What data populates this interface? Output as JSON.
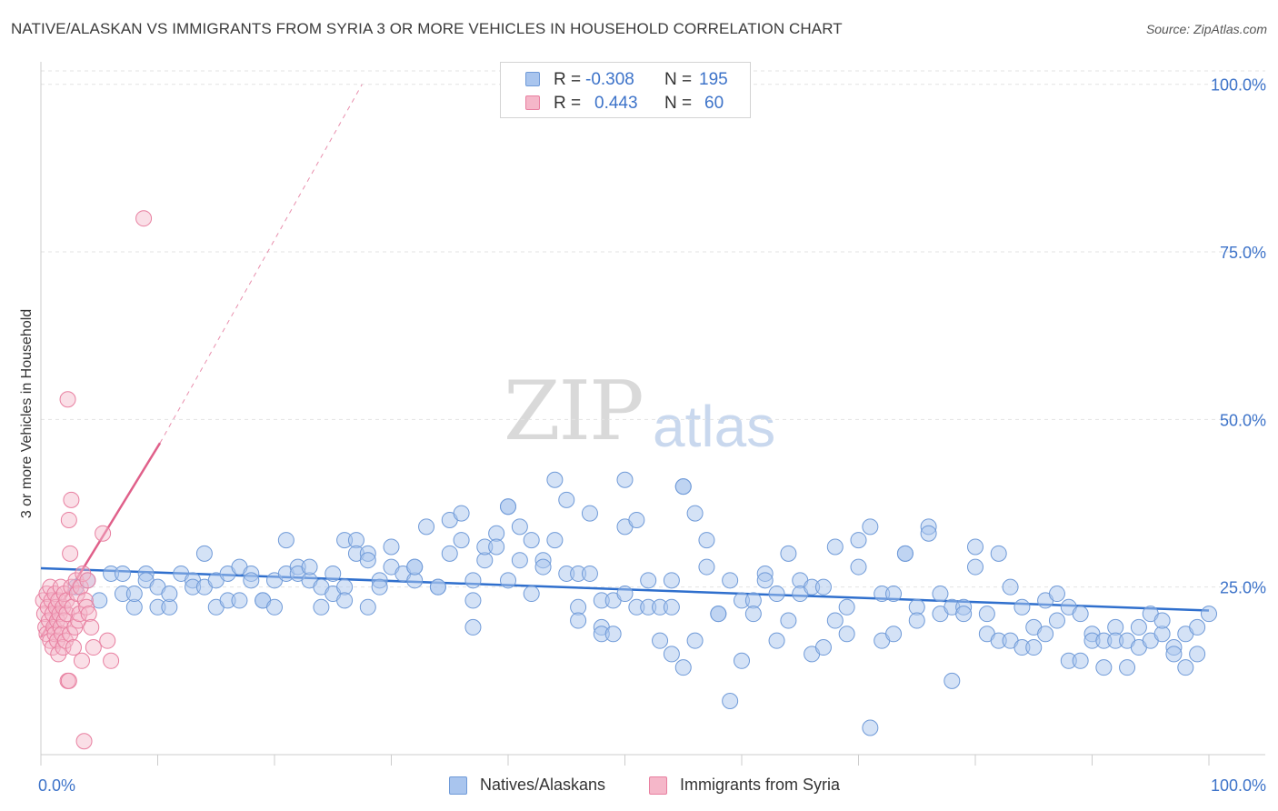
{
  "header": {
    "title": "NATIVE/ALASKAN VS IMMIGRANTS FROM SYRIA 3 OR MORE VEHICLES IN HOUSEHOLD CORRELATION CHART",
    "source": "Source: ZipAtlas.com"
  },
  "watermark": {
    "zip": "ZIP",
    "atlas": "atlas"
  },
  "stats": {
    "row1": {
      "r_label": "R =",
      "r_value": "-0.308",
      "n_label": "N =",
      "n_value": "195"
    },
    "row2": {
      "r_label": "R =",
      "r_value": "0.443",
      "n_label": "N =",
      "n_value": "60"
    }
  },
  "legend": {
    "series1": "Natives/Alaskans",
    "series2": "Immigrants from Syria"
  },
  "colors": {
    "blue_fill": "#a9c5ee",
    "blue_stroke": "#6f9ad8",
    "blue_line": "#2f6fcd",
    "pink_fill": "#f5b7c9",
    "pink_stroke": "#e87fa0",
    "pink_line": "#e0608a",
    "axis_label": "#3d73c9"
  },
  "chart_data": {
    "type": "scatter",
    "title": "NATIVE/ALASKAN VS IMMIGRANTS FROM SYRIA 3 OR MORE VEHICLES IN HOUSEHOLD CORRELATION CHART",
    "xlabel": "",
    "ylabel": "3 or more Vehicles in Household",
    "xlim": [
      0,
      100
    ],
    "ylim": [
      0,
      102
    ],
    "x_tick_labels": [
      "0.0%",
      "100.0%"
    ],
    "y_tick_labels": [
      "25.0%",
      "50.0%",
      "75.0%",
      "100.0%"
    ],
    "y_tick_values": [
      25,
      50,
      75,
      100
    ],
    "series": [
      {
        "name": "Natives/Alaskans",
        "r": -0.308,
        "n": 195,
        "trend": {
          "x0": 0,
          "y0": 27.8,
          "x1": 100,
          "y1": 21.5
        },
        "points": [
          [
            3,
            25
          ],
          [
            4,
            26
          ],
          [
            5,
            23
          ],
          [
            6,
            27
          ],
          [
            7,
            27
          ],
          [
            7,
            24
          ],
          [
            8,
            22
          ],
          [
            8,
            24
          ],
          [
            9,
            27
          ],
          [
            9,
            26
          ],
          [
            10,
            22
          ],
          [
            10,
            25
          ],
          [
            11,
            22
          ],
          [
            11,
            24
          ],
          [
            12,
            27
          ],
          [
            13,
            26
          ],
          [
            13,
            25
          ],
          [
            14,
            25
          ],
          [
            14,
            30
          ],
          [
            15,
            22
          ],
          [
            15,
            26
          ],
          [
            16,
            27
          ],
          [
            16,
            23
          ],
          [
            17,
            23
          ],
          [
            17,
            28
          ],
          [
            18,
            27
          ],
          [
            18,
            26
          ],
          [
            19,
            23
          ],
          [
            19,
            23
          ],
          [
            20,
            22
          ],
          [
            20,
            26
          ],
          [
            21,
            32
          ],
          [
            21,
            27
          ],
          [
            22,
            28
          ],
          [
            22,
            27
          ],
          [
            23,
            26
          ],
          [
            23,
            28
          ],
          [
            24,
            25
          ],
          [
            24,
            22
          ],
          [
            25,
            24
          ],
          [
            25,
            27
          ],
          [
            26,
            25
          ],
          [
            26,
            23
          ],
          [
            26,
            32
          ],
          [
            27,
            32
          ],
          [
            27,
            30
          ],
          [
            28,
            30
          ],
          [
            28,
            29
          ],
          [
            28,
            22
          ],
          [
            29,
            26
          ],
          [
            29,
            25
          ],
          [
            30,
            31
          ],
          [
            30,
            28
          ],
          [
            31,
            27
          ],
          [
            32,
            26
          ],
          [
            32,
            28
          ],
          [
            32,
            28
          ],
          [
            33,
            34
          ],
          [
            34,
            25
          ],
          [
            34,
            25
          ],
          [
            35,
            35
          ],
          [
            35,
            30
          ],
          [
            36,
            36
          ],
          [
            36,
            32
          ],
          [
            37,
            26
          ],
          [
            37,
            23
          ],
          [
            37,
            19
          ],
          [
            38,
            29
          ],
          [
            38,
            31
          ],
          [
            39,
            33
          ],
          [
            39,
            31
          ],
          [
            40,
            26
          ],
          [
            40,
            37
          ],
          [
            40,
            37
          ],
          [
            41,
            34
          ],
          [
            41,
            29
          ],
          [
            42,
            32
          ],
          [
            42,
            24
          ],
          [
            43,
            29
          ],
          [
            43,
            28
          ],
          [
            44,
            41
          ],
          [
            44,
            32
          ],
          [
            45,
            38
          ],
          [
            45,
            27
          ],
          [
            46,
            27
          ],
          [
            46,
            22
          ],
          [
            46,
            20
          ],
          [
            47,
            36
          ],
          [
            47,
            27
          ],
          [
            48,
            23
          ],
          [
            48,
            19
          ],
          [
            48,
            18
          ],
          [
            49,
            23
          ],
          [
            49,
            18
          ],
          [
            50,
            34
          ],
          [
            50,
            24
          ],
          [
            50,
            41
          ],
          [
            51,
            35
          ],
          [
            51,
            22
          ],
          [
            52,
            22
          ],
          [
            52,
            26
          ],
          [
            53,
            17
          ],
          [
            53,
            22
          ],
          [
            54,
            15
          ],
          [
            54,
            26
          ],
          [
            54,
            22
          ],
          [
            55,
            13
          ],
          [
            55,
            40
          ],
          [
            55,
            40
          ],
          [
            56,
            36
          ],
          [
            56,
            17
          ],
          [
            57,
            28
          ],
          [
            57,
            32
          ],
          [
            58,
            21
          ],
          [
            58,
            21
          ],
          [
            59,
            26
          ],
          [
            59,
            8
          ],
          [
            60,
            23
          ],
          [
            60,
            14
          ],
          [
            61,
            23
          ],
          [
            61,
            21
          ],
          [
            62,
            27
          ],
          [
            62,
            26
          ],
          [
            63,
            24
          ],
          [
            63,
            17
          ],
          [
            64,
            30
          ],
          [
            64,
            20
          ],
          [
            65,
            26
          ],
          [
            65,
            24
          ],
          [
            66,
            15
          ],
          [
            66,
            25
          ],
          [
            67,
            25
          ],
          [
            67,
            16
          ],
          [
            68,
            31
          ],
          [
            68,
            20
          ],
          [
            69,
            22
          ],
          [
            69,
            18
          ],
          [
            70,
            32
          ],
          [
            70,
            28
          ],
          [
            71,
            34
          ],
          [
            71,
            4
          ],
          [
            72,
            24
          ],
          [
            72,
            17
          ],
          [
            73,
            24
          ],
          [
            73,
            18
          ],
          [
            74,
            30
          ],
          [
            74,
            30
          ],
          [
            75,
            22
          ],
          [
            75,
            20
          ],
          [
            76,
            34
          ],
          [
            76,
            33
          ],
          [
            77,
            24
          ],
          [
            77,
            21
          ],
          [
            78,
            22
          ],
          [
            78,
            11
          ],
          [
            79,
            22
          ],
          [
            79,
            21
          ],
          [
            80,
            31
          ],
          [
            80,
            28
          ],
          [
            81,
            21
          ],
          [
            81,
            18
          ],
          [
            82,
            17
          ],
          [
            82,
            30
          ],
          [
            83,
            25
          ],
          [
            83,
            17
          ],
          [
            84,
            22
          ],
          [
            84,
            16
          ],
          [
            85,
            16
          ],
          [
            85,
            19
          ],
          [
            86,
            18
          ],
          [
            86,
            23
          ],
          [
            87,
            20
          ],
          [
            87,
            24
          ],
          [
            88,
            14
          ],
          [
            88,
            22
          ],
          [
            89,
            14
          ],
          [
            89,
            21
          ],
          [
            90,
            18
          ],
          [
            90,
            17
          ],
          [
            91,
            13
          ],
          [
            91,
            17
          ],
          [
            92,
            19
          ],
          [
            92,
            17
          ],
          [
            93,
            17
          ],
          [
            93,
            13
          ],
          [
            94,
            19
          ],
          [
            94,
            16
          ],
          [
            95,
            17
          ],
          [
            95,
            21
          ],
          [
            96,
            18
          ],
          [
            96,
            20
          ],
          [
            97,
            16
          ],
          [
            97,
            15
          ],
          [
            98,
            13
          ],
          [
            98,
            18
          ],
          [
            99,
            15
          ],
          [
            99,
            19
          ],
          [
            100,
            21
          ]
        ]
      },
      {
        "name": "Immigrants from Syria",
        "r": 0.443,
        "n": 60,
        "trend": {
          "x0": 0,
          "y0": 17.5,
          "x1": 10.2,
          "y1": 46.5,
          "extrapolated_to": {
            "x": 27.5,
            "y": 100
          }
        },
        "points": [
          [
            0.2,
            23
          ],
          [
            0.3,
            21
          ],
          [
            0.4,
            19
          ],
          [
            0.5,
            24
          ],
          [
            0.5,
            18
          ],
          [
            0.6,
            22
          ],
          [
            0.7,
            20
          ],
          [
            0.8,
            25
          ],
          [
            0.8,
            17
          ],
          [
            0.9,
            23
          ],
          [
            1.0,
            21
          ],
          [
            1.0,
            16
          ],
          [
            1.1,
            19
          ],
          [
            1.2,
            24
          ],
          [
            1.2,
            18
          ],
          [
            1.3,
            22
          ],
          [
            1.4,
            20
          ],
          [
            1.4,
            17
          ],
          [
            1.5,
            23
          ],
          [
            1.5,
            15
          ],
          [
            1.6,
            21
          ],
          [
            1.7,
            25
          ],
          [
            1.7,
            19
          ],
          [
            1.8,
            18
          ],
          [
            1.9,
            22
          ],
          [
            1.9,
            16
          ],
          [
            2.0,
            24
          ],
          [
            2.0,
            20
          ],
          [
            2.1,
            17
          ],
          [
            2.2,
            21
          ],
          [
            2.2,
            23
          ],
          [
            2.3,
            53
          ],
          [
            2.3,
            11
          ],
          [
            2.4,
            35
          ],
          [
            2.4,
            11
          ],
          [
            2.5,
            30
          ],
          [
            2.5,
            18
          ],
          [
            2.6,
            38
          ],
          [
            2.6,
            25
          ],
          [
            2.7,
            22
          ],
          [
            2.8,
            16
          ],
          [
            2.9,
            19
          ],
          [
            3.0,
            26
          ],
          [
            3.1,
            24
          ],
          [
            3.2,
            20
          ],
          [
            3.3,
            21
          ],
          [
            3.4,
            25
          ],
          [
            3.5,
            14
          ],
          [
            3.6,
            27
          ],
          [
            3.7,
            2
          ],
          [
            3.8,
            23
          ],
          [
            3.9,
            22
          ],
          [
            4.0,
            26
          ],
          [
            4.1,
            21
          ],
          [
            4.3,
            19
          ],
          [
            4.5,
            16
          ],
          [
            5.3,
            33
          ],
          [
            5.7,
            17
          ],
          [
            6.0,
            14
          ],
          [
            8.8,
            80
          ]
        ]
      }
    ]
  }
}
